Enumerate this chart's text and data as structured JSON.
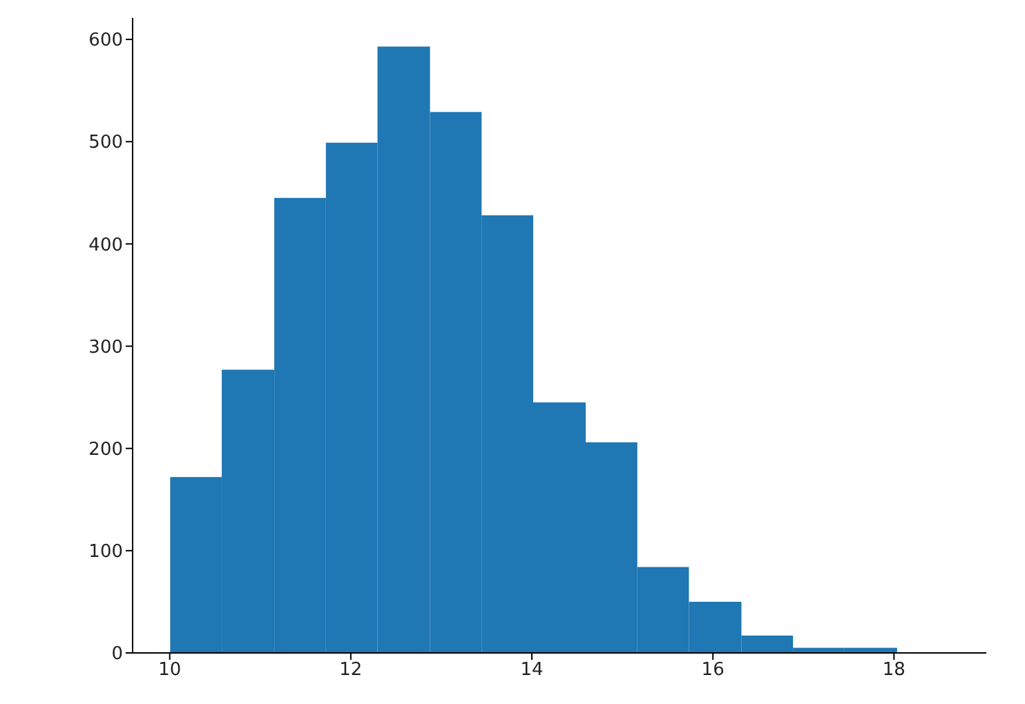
{
  "chart_data": {
    "type": "histogram",
    "bins": [
      10,
      10.57,
      11.15,
      11.72,
      12.29,
      12.87,
      13.44,
      14.01,
      14.59,
      15.16,
      15.73,
      16.31,
      16.88,
      17.45,
      18.03
    ],
    "values": [
      172,
      277,
      445,
      499,
      593,
      529,
      428,
      245,
      206,
      84,
      50,
      17,
      5,
      5
    ],
    "color": "#1f77b4",
    "xlim": [
      9.59,
      19.02
    ],
    "ylim": [
      0,
      621
    ],
    "xticks": [
      10,
      12,
      14,
      16,
      18
    ],
    "yticks": [
      0,
      100,
      200,
      300,
      400,
      500,
      600
    ]
  }
}
